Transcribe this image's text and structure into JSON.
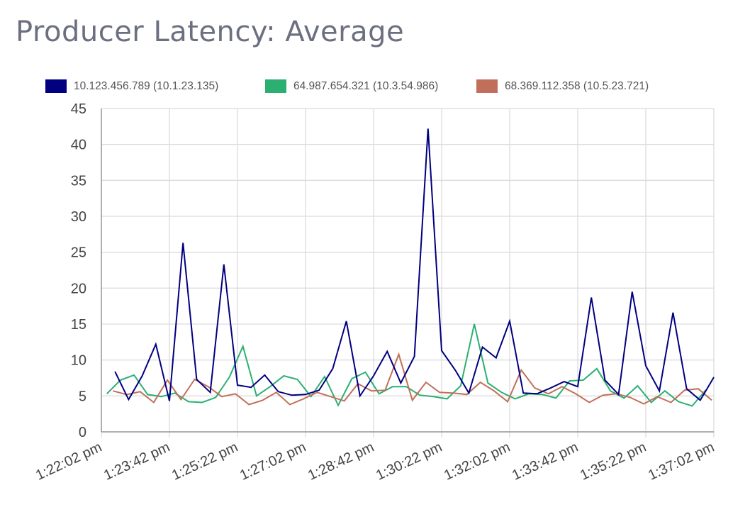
{
  "title": "Producer Latency: Average",
  "chart_data": {
    "type": "line",
    "title": "Producer Latency: Average",
    "xlabel": "",
    "ylabel": "",
    "ylim": [
      0,
      45
    ],
    "yticks": [
      "0",
      "5",
      "10",
      "15",
      "20",
      "25",
      "30",
      "35",
      "40",
      "45"
    ],
    "xticks": [
      "1:22:02 pm",
      "1:23:42 pm",
      "1:25:22 pm",
      "1:27:02 pm",
      "1:28:42 pm",
      "1:30:22 pm",
      "1:32:02 pm",
      "1:33:42 pm",
      "1:35:22 pm",
      "1:37:02 pm"
    ],
    "xrange": [
      "1:22:02 pm",
      "1:37:02 pm"
    ],
    "sample_interval_seconds": 20,
    "grid": true,
    "legend": "top",
    "series": [
      {
        "name": "10.123.456.789 (10.1.23.135)",
        "color": "#000080",
        "first_time": "1:22:22 pm",
        "values": [
          8.4,
          4.5,
          7.8,
          12.2,
          4.3,
          26.3,
          7.3,
          5.5,
          23.3,
          6.5,
          6.2,
          7.9,
          5.6,
          5.1,
          5.2,
          5.8,
          8.8,
          15.4,
          5.0,
          7.8,
          11.2,
          6.8,
          10.5,
          42.2,
          11.3,
          8.6,
          5.4,
          11.8,
          10.3,
          15.4,
          5.4,
          5.3,
          6.1,
          7.0,
          6.3,
          18.7,
          7.2,
          5.2,
          19.5,
          9.2,
          5.7,
          16.6,
          6.0,
          4.4,
          7.6
        ]
      },
      {
        "name": "64.987.654.321 (10.3.54.986)",
        "color": "#2bb072",
        "first_time": "1:22:10 pm",
        "values": [
          5.3,
          7.2,
          7.9,
          5.2,
          4.9,
          5.4,
          4.2,
          4.1,
          4.8,
          7.6,
          11.9,
          5.0,
          6.3,
          7.8,
          7.3,
          4.9,
          7.7,
          3.7,
          7.4,
          8.3,
          5.3,
          6.3,
          6.3,
          5.1,
          4.9,
          4.6,
          6.4,
          15.0,
          6.8,
          5.5,
          4.6,
          5.3,
          5.2,
          4.7,
          7.1,
          7.2,
          8.8,
          5.7,
          4.7,
          6.4,
          4.1,
          5.7,
          4.2,
          3.6,
          5.8
        ]
      },
      {
        "name": "68.369.112.358 (10.5.23.721)",
        "color": "#c0705a",
        "first_time": "1:22:19 pm",
        "values": [
          5.7,
          5.2,
          5.6,
          4.1,
          7.2,
          4.5,
          7.3,
          6.3,
          4.9,
          5.3,
          3.8,
          4.4,
          5.5,
          3.8,
          4.6,
          5.5,
          4.9,
          4.3,
          6.7,
          5.7,
          5.8,
          10.8,
          4.4,
          6.9,
          5.5,
          5.4,
          5.2,
          6.9,
          5.7,
          4.2,
          8.6,
          6.1,
          5.3,
          6.3,
          5.3,
          4.1,
          5.1,
          5.3,
          4.8,
          3.9,
          4.9,
          4.1,
          5.8,
          6.0,
          4.4
        ]
      }
    ]
  }
}
